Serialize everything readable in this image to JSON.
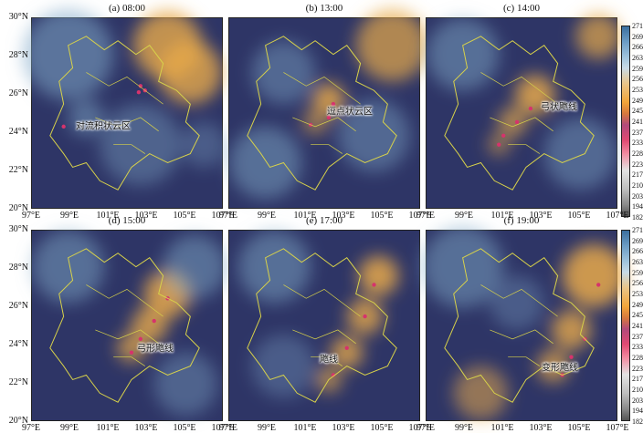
{
  "panels": [
    {
      "title": "(a) 08:00",
      "annotation": "对流积状云区"
    },
    {
      "title": "(b) 13:00",
      "annotation": "逗点状云区"
    },
    {
      "title": "(c) 14:00",
      "annotation": "弓状飑线"
    },
    {
      "title": "(d) 15:00",
      "annotation": "弓形飑线"
    },
    {
      "title": "(e) 17:00",
      "annotation": "飑线"
    },
    {
      "title": "(f) 19:00",
      "annotation": "变形飑线"
    }
  ],
  "axes": {
    "y_ticks": [
      "30°N",
      "28°N",
      "26°N",
      "24°N",
      "22°N",
      "20°N"
    ],
    "x_ticks": [
      "97°E",
      "99°E",
      "101°E",
      "103°E",
      "105°E",
      "107°E"
    ]
  },
  "colorbar": {
    "top": [
      "271",
      "269",
      "266",
      "263",
      "259",
      "256",
      "253",
      "249",
      "245",
      "241",
      "237",
      "233",
      "228",
      "223",
      "217",
      "210",
      "203",
      "194",
      "182"
    ],
    "bottom": [
      "271",
      "269",
      "266",
      "263",
      "259",
      "256",
      "253",
      "249",
      "245",
      "241",
      "237",
      "233",
      "228",
      "223",
      "217",
      "210",
      "203",
      "194",
      "182"
    ]
  },
  "colors": {
    "cloud_free_dark": "#2e3566",
    "cold_cloud_orange": "#e7a94a",
    "cloud_blue": "#7fa7c8",
    "boundary_yellow": "#d8d24a",
    "convection_red": "#d6336c"
  }
}
